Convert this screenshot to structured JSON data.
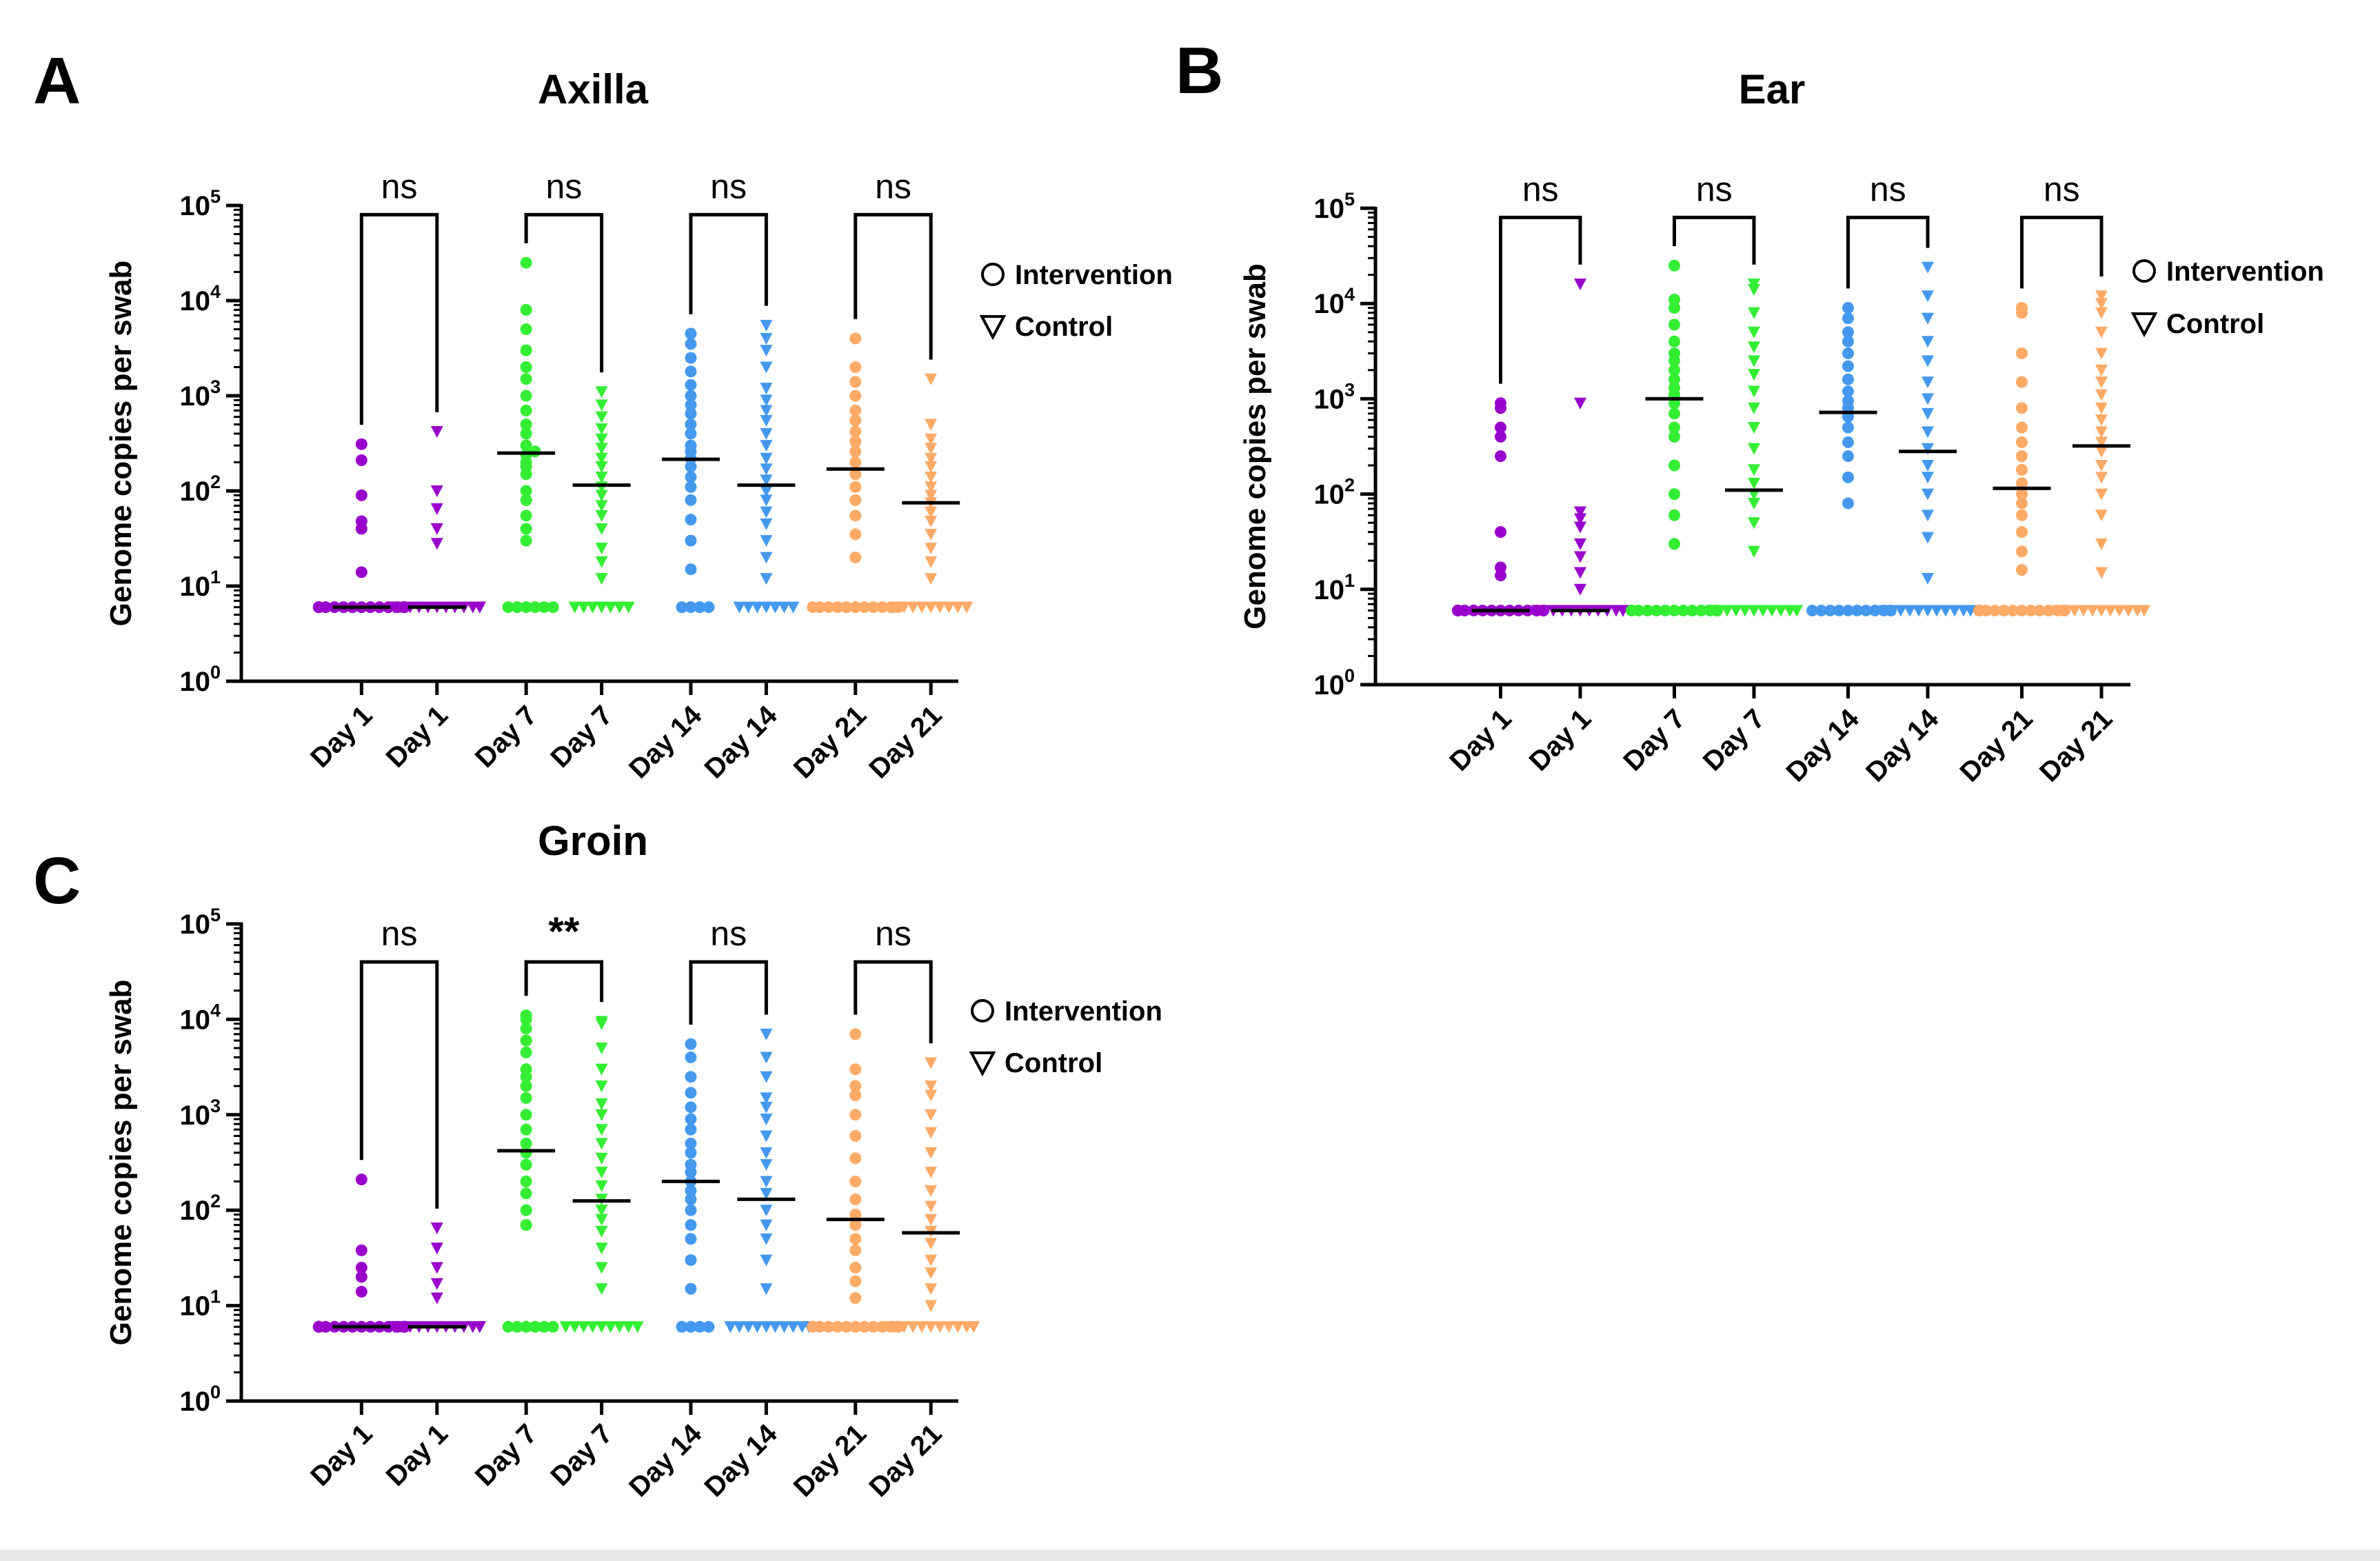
{
  "chart_data": [
    {
      "type": "scatter",
      "panel": "A",
      "title": "Axilla",
      "ylabel": "Genome copies per swab",
      "xlabel": "",
      "yscale": "log10",
      "ylim": [
        1,
        100000
      ],
      "y_ticks": [
        {
          "base": "10",
          "exp": "0"
        },
        {
          "base": "10",
          "exp": "1"
        },
        {
          "base": "10",
          "exp": "2"
        },
        {
          "base": "10",
          "exp": "3"
        },
        {
          "base": "10",
          "exp": "4"
        },
        {
          "base": "10",
          "exp": "5"
        }
      ],
      "categories": [
        "Day 1",
        "Day 1",
        "Day 7",
        "Day 7",
        "Day 14",
        "Day 14",
        "Day 21",
        "Day 21"
      ],
      "groups": [
        "Intervention",
        "Control",
        "Intervention",
        "Control",
        "Intervention",
        "Control",
        "Intervention",
        "Control"
      ],
      "colors": [
        "#9900cc",
        "#9900cc",
        "#33ee33",
        "#33ee33",
        "#4499ee",
        "#4499ee",
        "#ffaa66",
        "#ffaa66"
      ],
      "medians": [
        6,
        6,
        250,
        115,
        215,
        115,
        170,
        75
      ],
      "values": [
        [
          6,
          6,
          6,
          6,
          6,
          6,
          6,
          6,
          6,
          6,
          6,
          6,
          6,
          6,
          6,
          6,
          14,
          40,
          48,
          90,
          210,
          310
        ],
        [
          6,
          6,
          6,
          6,
          6,
          6,
          6,
          6,
          6,
          6,
          6,
          6,
          6,
          6,
          6,
          6,
          6,
          6,
          28,
          40,
          65,
          100,
          420
        ],
        [
          6,
          6,
          6,
          6,
          6,
          6,
          30,
          40,
          55,
          80,
          100,
          150,
          180,
          200,
          240,
          260,
          300,
          400,
          500,
          700,
          1000,
          1500,
          2000,
          3000,
          5000,
          8000,
          25000
        ],
        [
          6,
          6,
          6,
          6,
          6,
          6,
          6,
          12,
          18,
          25,
          40,
          55,
          70,
          90,
          110,
          140,
          180,
          220,
          280,
          350,
          450,
          600,
          800,
          1100
        ],
        [
          6,
          6,
          6,
          6,
          15,
          30,
          50,
          80,
          110,
          140,
          180,
          220,
          260,
          300,
          400,
          500,
          650,
          800,
          1000,
          1300,
          1800,
          2500,
          3500,
          4500
        ],
        [
          6,
          6,
          6,
          6,
          6,
          6,
          6,
          12,
          20,
          30,
          45,
          60,
          80,
          100,
          130,
          170,
          220,
          300,
          400,
          550,
          700,
          900,
          1200,
          2000,
          3000,
          4000,
          5500
        ],
        [
          6,
          6,
          6,
          6,
          6,
          6,
          6,
          6,
          6,
          6,
          6,
          20,
          35,
          55,
          80,
          110,
          150,
          200,
          260,
          330,
          420,
          550,
          700,
          1000,
          1400,
          2000,
          4000
        ],
        [
          6,
          6,
          6,
          6,
          6,
          6,
          6,
          6,
          6,
          12,
          18,
          25,
          35,
          48,
          60,
          75,
          90,
          110,
          140,
          180,
          220,
          280,
          350,
          500,
          1500
        ]
      ],
      "comparisons": [
        {
          "label": "ns",
          "bold": false,
          "top": 80000
        },
        {
          "label": "ns",
          "bold": false,
          "top": 80000
        },
        {
          "label": "ns",
          "bold": false,
          "top": 80000
        },
        {
          "label": "ns",
          "bold": false,
          "top": 80000
        }
      ],
      "legend": {
        "position": "right",
        "entries": [
          "Intervention",
          "Control"
        ]
      }
    },
    {
      "type": "scatter",
      "panel": "B",
      "title": "Ear",
      "ylabel": "Genome copies per swab",
      "xlabel": "",
      "yscale": "log10",
      "ylim": [
        1,
        100000
      ],
      "y_ticks": [
        {
          "base": "10",
          "exp": "0"
        },
        {
          "base": "10",
          "exp": "1"
        },
        {
          "base": "10",
          "exp": "2"
        },
        {
          "base": "10",
          "exp": "3"
        },
        {
          "base": "10",
          "exp": "4"
        },
        {
          "base": "10",
          "exp": "5"
        }
      ],
      "categories": [
        "Day 1",
        "Day 1",
        "Day 7",
        "Day 7",
        "Day 14",
        "Day 14",
        "Day 21",
        "Day 21"
      ],
      "groups": [
        "Intervention",
        "Control",
        "Intervention",
        "Control",
        "Intervention",
        "Control",
        "Intervention",
        "Control"
      ],
      "colors": [
        "#9900cc",
        "#9900cc",
        "#33ee33",
        "#33ee33",
        "#4499ee",
        "#4499ee",
        "#ffaa66",
        "#ffaa66"
      ],
      "medians": [
        6,
        6,
        1000,
        110,
        720,
        280,
        115,
        320
      ],
      "values": [
        [
          6,
          6,
          6,
          6,
          6,
          6,
          6,
          6,
          6,
          6,
          6,
          6,
          6,
          6,
          6,
          6,
          6,
          6,
          14,
          17,
          40,
          250,
          400,
          500,
          800,
          900
        ],
        [
          6,
          6,
          6,
          6,
          6,
          6,
          6,
          6,
          6,
          6,
          6,
          6,
          6,
          6,
          6,
          6,
          10,
          15,
          22,
          30,
          45,
          55,
          65,
          900,
          16000
        ],
        [
          6,
          6,
          6,
          6,
          6,
          6,
          6,
          6,
          6,
          6,
          6,
          6,
          30,
          60,
          100,
          200,
          400,
          500,
          700,
          900,
          1100,
          1300,
          1600,
          2000,
          2500,
          3000,
          4000,
          6000,
          9000,
          11000,
          25000
        ],
        [
          6,
          6,
          6,
          6,
          6,
          6,
          6,
          6,
          6,
          6,
          6,
          6,
          25,
          50,
          80,
          100,
          130,
          180,
          300,
          500,
          800,
          1200,
          1800,
          2500,
          3500,
          5000,
          8000,
          14000,
          16000
        ],
        [
          6,
          6,
          6,
          6,
          6,
          6,
          6,
          6,
          6,
          6,
          80,
          150,
          250,
          350,
          500,
          650,
          800,
          950,
          1200,
          1600,
          2200,
          3000,
          4000,
          5000,
          7000,
          9000
        ],
        [
          6,
          6,
          6,
          6,
          6,
          6,
          6,
          6,
          6,
          6,
          6,
          6,
          6,
          6,
          13,
          35,
          60,
          100,
          150,
          200,
          300,
          450,
          700,
          1000,
          1500,
          2500,
          4000,
          7000,
          12000,
          24000
        ],
        [
          6,
          6,
          6,
          6,
          6,
          6,
          6,
          6,
          6,
          6,
          6,
          6,
          6,
          6,
          6,
          16,
          25,
          40,
          60,
          80,
          100,
          130,
          180,
          250,
          350,
          500,
          800,
          1500,
          3000,
          8000,
          9000
        ],
        [
          6,
          6,
          6,
          6,
          6,
          6,
          6,
          6,
          6,
          6,
          6,
          15,
          30,
          60,
          100,
          150,
          200,
          280,
          350,
          450,
          600,
          800,
          1100,
          1500,
          2000,
          3000,
          5000,
          8000,
          10000,
          12000
        ]
      ],
      "comparisons": [
        {
          "label": "ns",
          "bold": false,
          "top": 80000
        },
        {
          "label": "ns",
          "bold": false,
          "top": 80000
        },
        {
          "label": "ns",
          "bold": false,
          "top": 80000
        },
        {
          "label": "ns",
          "bold": false,
          "top": 80000
        }
      ],
      "legend": {
        "position": "right",
        "entries": [
          "Intervention",
          "Control"
        ]
      }
    },
    {
      "type": "scatter",
      "panel": "C",
      "title": "Groin",
      "ylabel": "Genome copies per swab",
      "xlabel": "",
      "yscale": "log10",
      "ylim": [
        1,
        100000
      ],
      "y_ticks": [
        {
          "base": "10",
          "exp": "0"
        },
        {
          "base": "10",
          "exp": "1"
        },
        {
          "base": "10",
          "exp": "2"
        },
        {
          "base": "10",
          "exp": "3"
        },
        {
          "base": "10",
          "exp": "4"
        },
        {
          "base": "10",
          "exp": "5"
        }
      ],
      "categories": [
        "Day 1",
        "Day 1",
        "Day 7",
        "Day 7",
        "Day 14",
        "Day 14",
        "Day 21",
        "Day 21"
      ],
      "groups": [
        "Intervention",
        "Control",
        "Intervention",
        "Control",
        "Intervention",
        "Control",
        "Intervention",
        "Control"
      ],
      "colors": [
        "#9900cc",
        "#9900cc",
        "#33ee33",
        "#33ee33",
        "#4499ee",
        "#4499ee",
        "#ffaa66",
        "#ffaa66"
      ],
      "medians": [
        6,
        6,
        420,
        125,
        200,
        130,
        80,
        58
      ],
      "values": [
        [
          6,
          6,
          6,
          6,
          6,
          6,
          6,
          6,
          6,
          6,
          6,
          6,
          6,
          6,
          6,
          6,
          6,
          6,
          14,
          20,
          25,
          38,
          210
        ],
        [
          6,
          6,
          6,
          6,
          6,
          6,
          6,
          6,
          6,
          6,
          6,
          6,
          6,
          6,
          6,
          6,
          6,
          6,
          12,
          17,
          25,
          40,
          65
        ],
        [
          6,
          6,
          6,
          6,
          6,
          6,
          70,
          100,
          150,
          200,
          300,
          400,
          500,
          700,
          1000,
          1500,
          2000,
          2500,
          3000,
          4500,
          6000,
          8000,
          10000,
          11000
        ],
        [
          6,
          6,
          6,
          6,
          6,
          6,
          6,
          6,
          6,
          15,
          25,
          40,
          60,
          80,
          100,
          130,
          180,
          250,
          350,
          500,
          700,
          1000,
          1300,
          2000,
          3000,
          5000,
          9000,
          9500
        ],
        [
          6,
          6,
          6,
          6,
          15,
          30,
          50,
          70,
          100,
          130,
          160,
          200,
          250,
          300,
          400,
          500,
          700,
          900,
          1200,
          1700,
          2500,
          4000,
          5500
        ],
        [
          6,
          6,
          6,
          6,
          6,
          6,
          6,
          6,
          6,
          6,
          15,
          30,
          50,
          70,
          100,
          150,
          200,
          300,
          400,
          600,
          900,
          1200,
          1500,
          2500,
          4000,
          7000
        ],
        [
          6,
          6,
          6,
          6,
          6,
          6,
          6,
          6,
          6,
          6,
          6,
          6,
          6,
          6,
          12,
          18,
          25,
          38,
          50,
          70,
          90,
          130,
          200,
          350,
          600,
          1000,
          1600,
          2000,
          3000,
          7000
        ],
        [
          6,
          6,
          6,
          6,
          6,
          6,
          6,
          6,
          6,
          6,
          6,
          6,
          6,
          6,
          10,
          15,
          22,
          30,
          45,
          60,
          80,
          110,
          160,
          250,
          400,
          650,
          1000,
          1600,
          2000,
          3500
        ]
      ],
      "comparisons": [
        {
          "label": "ns",
          "bold": false,
          "top": 40000
        },
        {
          "label": "**",
          "bold": true,
          "top": 40000
        },
        {
          "label": "ns",
          "bold": false,
          "top": 40000
        },
        {
          "label": "ns",
          "bold": false,
          "top": 40000
        }
      ],
      "legend": {
        "position": "right",
        "entries": [
          "Intervention",
          "Control"
        ]
      }
    }
  ]
}
